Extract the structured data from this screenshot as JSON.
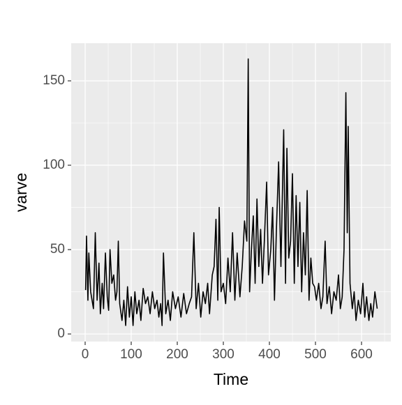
{
  "chart_data": {
    "type": "line",
    "x_label": "Time",
    "y_label": "varve",
    "x": [
      1,
      3,
      6,
      8,
      12,
      18,
      22,
      26,
      30,
      33,
      37,
      40,
      44,
      48,
      51,
      54,
      58,
      62,
      66,
      69,
      72,
      75,
      80,
      84,
      88,
      92,
      96,
      100,
      104,
      108,
      112,
      117,
      121,
      126,
      131,
      136,
      141,
      146,
      151,
      156,
      160,
      164,
      167,
      170,
      175,
      180,
      185,
      190,
      196,
      202,
      208,
      214,
      220,
      226,
      231,
      236,
      241,
      246,
      251,
      256,
      261,
      266,
      270,
      276,
      280,
      284,
      288,
      291,
      295,
      300,
      305,
      310,
      315,
      320,
      325,
      330,
      336,
      341,
      346,
      351,
      354,
      357,
      361,
      365,
      369,
      373,
      377,
      381,
      385,
      389,
      394,
      398,
      403,
      407,
      411,
      415,
      420,
      425,
      431,
      435,
      438,
      442,
      446,
      450,
      454,
      458,
      462,
      466,
      470,
      474,
      478,
      482,
      486,
      490,
      494,
      498,
      502,
      507,
      512,
      516,
      521,
      525,
      530,
      535,
      540,
      545,
      550,
      554,
      558,
      562,
      566,
      569,
      571,
      575,
      580,
      584,
      588,
      593,
      598,
      603,
      607,
      611,
      616,
      620,
      624,
      629,
      634
    ],
    "series": [
      {
        "color": "#000000",
        "values": [
          26,
          58,
          20,
          48,
          25,
          15,
          60,
          20,
          42,
          12,
          30,
          15,
          48,
          22,
          14,
          50,
          30,
          35,
          20,
          25,
          55,
          18,
          8,
          20,
          5,
          28,
          10,
          22,
          5,
          25,
          12,
          20,
          8,
          27,
          18,
          22,
          12,
          25,
          15,
          20,
          10,
          18,
          5,
          48,
          12,
          20,
          8,
          25,
          15,
          22,
          10,
          24,
          12,
          18,
          22,
          60,
          15,
          30,
          10,
          25,
          18,
          30,
          12,
          35,
          40,
          68,
          20,
          75,
          25,
          30,
          18,
          45,
          25,
          60,
          20,
          48,
          22,
          40,
          67,
          55,
          163,
          25,
          50,
          70,
          30,
          80,
          40,
          62,
          30,
          55,
          90,
          35,
          50,
          75,
          20,
          60,
          102,
          40,
          121,
          30,
          110,
          45,
          55,
          95,
          30,
          82,
          40,
          78,
          25,
          60,
          35,
          85,
          20,
          45,
          30,
          28,
          20,
          30,
          15,
          22,
          55,
          18,
          28,
          12,
          25,
          20,
          35,
          15,
          22,
          50,
          143,
          60,
          123,
          30,
          15,
          25,
          8,
          20,
          12,
          30,
          10,
          22,
          8,
          18,
          10,
          25,
          15
        ]
      }
    ],
    "xlim": [
      -30.3,
      663.6
    ],
    "ylim": [
      -4.5,
      172.3
    ],
    "xticks": [
      0,
      100,
      200,
      300,
      400,
      500,
      600
    ],
    "yticks": [
      0,
      50,
      100,
      150
    ],
    "x_minor_grid": [
      50,
      150,
      250,
      350,
      450,
      550,
      650
    ],
    "y_minor_grid": [
      25,
      75,
      125
    ],
    "grid": true
  }
}
